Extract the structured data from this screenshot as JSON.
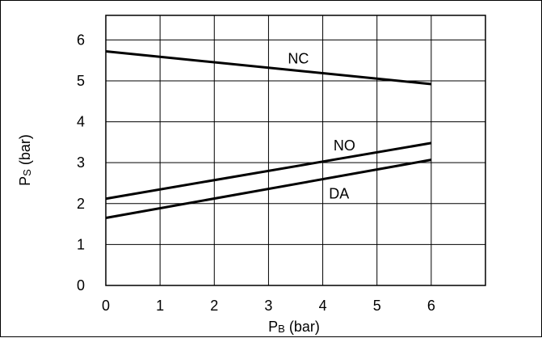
{
  "chart_data": {
    "type": "line",
    "xlabel_main": "P",
    "xlabel_sub": "B",
    "xlabel_unit": " (bar)",
    "ylabel_main": "P",
    "ylabel_sub": "S",
    "ylabel_unit": " (bar)",
    "xlim": [
      0,
      7
    ],
    "ylim": [
      0,
      6.6
    ],
    "x_ticks": [
      0,
      1,
      2,
      3,
      4,
      5,
      6
    ],
    "y_ticks": [
      0,
      1,
      2,
      3,
      4,
      5,
      6
    ],
    "grid": true,
    "series": [
      {
        "name": "NC",
        "x": [
          0,
          6
        ],
        "y": [
          5.72,
          4.92
        ]
      },
      {
        "name": "NO",
        "x": [
          0,
          6
        ],
        "y": [
          2.12,
          3.48
        ]
      },
      {
        "name": "DA",
        "x": [
          0,
          6
        ],
        "y": [
          1.65,
          3.07
        ]
      }
    ],
    "series_label_positions": [
      {
        "name": "NC",
        "x": 3.55,
        "y": 5.42
      },
      {
        "name": "NO",
        "x": 4.4,
        "y": 3.3
      },
      {
        "name": "DA",
        "x": 4.3,
        "y": 2.12
      }
    ]
  }
}
